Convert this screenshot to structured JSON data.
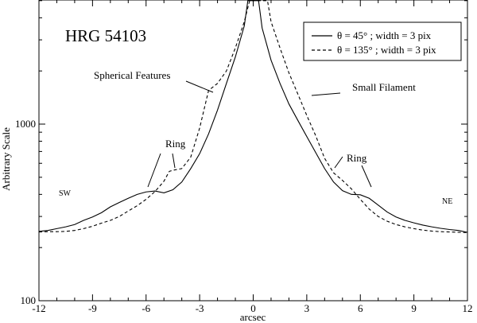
{
  "chart_data": {
    "type": "line",
    "title": "HRG 54103",
    "xlabel": "arcsec",
    "ylabel": "Arbitrary Scale",
    "xlim": [
      -12,
      12
    ],
    "ylim": [
      100,
      5000
    ],
    "yscale": "log",
    "grid": false,
    "legend_position": "top-right",
    "xticks": [
      -12,
      -9,
      -6,
      -3,
      0,
      3,
      6,
      9,
      12
    ],
    "yticks": [
      100,
      1000
    ],
    "series": [
      {
        "name": "θ = 45° ;  width = 3 pix",
        "style": "solid",
        "x": [
          -12,
          -11.5,
          -11,
          -10.5,
          -10,
          -9.5,
          -9,
          -8.5,
          -8,
          -7.5,
          -7,
          -6.5,
          -6,
          -5.5,
          -5,
          -4.5,
          -4,
          -3.5,
          -3,
          -2.5,
          -2,
          -1.5,
          -1,
          -0.5,
          -0.3,
          0,
          0.3,
          0.5,
          1,
          1.5,
          2,
          2.5,
          3,
          3.5,
          4,
          4.5,
          5,
          5.5,
          6,
          6.5,
          7,
          7.5,
          8,
          8.5,
          9,
          9.5,
          10,
          10.5,
          11,
          11.5,
          12
        ],
        "values": [
          247,
          250,
          256,
          262,
          270,
          285,
          298,
          315,
          340,
          360,
          380,
          400,
          413,
          418,
          408,
          425,
          470,
          560,
          680,
          880,
          1200,
          1700,
          2400,
          3600,
          5000,
          5000,
          5000,
          3500,
          2300,
          1700,
          1300,
          1050,
          850,
          690,
          560,
          470,
          420,
          400,
          398,
          380,
          348,
          318,
          298,
          285,
          276,
          268,
          262,
          257,
          253,
          250,
          244
        ]
      },
      {
        "name": "θ = 135° ;  width = 3 pix",
        "style": "dashed",
        "x": [
          -12,
          -11.5,
          -11,
          -10.5,
          -10,
          -9.5,
          -9,
          -8.5,
          -8,
          -7.5,
          -7,
          -6.5,
          -6,
          -5.5,
          -5,
          -4.7,
          -4.5,
          -4,
          -3.5,
          -3,
          -2.5,
          -2,
          -1.5,
          -1,
          -0.5,
          -0.2,
          0,
          0.5,
          0.8,
          1,
          1.5,
          2,
          2.5,
          3,
          3.5,
          4,
          4.5,
          5,
          5.5,
          6,
          6.5,
          7,
          7.5,
          8,
          8.5,
          9,
          9.5,
          10,
          10.5,
          11,
          11.5,
          12
        ],
        "values": [
          245,
          246,
          246,
          247,
          250,
          256,
          264,
          275,
          285,
          300,
          322,
          345,
          375,
          415,
          475,
          540,
          548,
          560,
          650,
          950,
          1550,
          1700,
          2000,
          2700,
          3800,
          5000,
          5000,
          5000,
          5000,
          3800,
          2700,
          1950,
          1480,
          1120,
          860,
          640,
          530,
          480,
          430,
          375,
          330,
          300,
          282,
          270,
          262,
          256,
          251,
          248,
          246,
          245,
          244,
          243
        ]
      }
    ],
    "annotations": [
      {
        "text": "Spherical Features"
      },
      {
        "text": "Small Filament"
      },
      {
        "text": "Ring"
      },
      {
        "text": "Ring"
      },
      {
        "text": "SW"
      },
      {
        "text": "NE"
      }
    ]
  }
}
